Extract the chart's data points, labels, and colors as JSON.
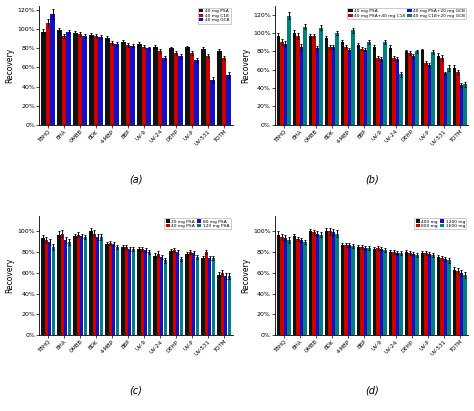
{
  "categories": [
    "TBHQ",
    "BHA",
    "OMBB",
    "BDK",
    "4-MBP",
    "BBP",
    "UV-9",
    "UV-24",
    "DEHP",
    "UV-P",
    "UV-531",
    "TOTM"
  ],
  "panel_a": {
    "title": "(a)",
    "legend": [
      "40 mg PSA",
      "40 mg C18",
      "40 mg GCB"
    ],
    "colors": [
      "#111111",
      "#cc0000",
      "#1111cc"
    ],
    "values": [
      [
        97,
        99,
        96,
        94,
        91,
        87,
        85,
        82,
        80,
        81,
        79,
        77
      ],
      [
        107,
        93,
        95,
        93,
        86,
        84,
        82,
        77,
        75,
        75,
        72,
        70
      ],
      [
        116,
        97,
        93,
        92,
        85,
        83,
        80,
        70,
        72,
        68,
        47,
        52
      ]
    ],
    "errors": [
      [
        3,
        2,
        2,
        2,
        2,
        2,
        2,
        2,
        2,
        2,
        2,
        2
      ],
      [
        4,
        2,
        2,
        2,
        2,
        2,
        2,
        2,
        2,
        2,
        2,
        2
      ],
      [
        5,
        2,
        2,
        2,
        2,
        2,
        2,
        2,
        2,
        2,
        3,
        3
      ]
    ],
    "ylim": [
      0,
      125
    ],
    "yticks": [
      0,
      20,
      40,
      60,
      80,
      100,
      120
    ]
  },
  "panel_b": {
    "title": "(b)",
    "legend": [
      "40 mg PSA",
      "40 mg PSA+40 mg C18",
      "40 mg PSA+20 mg GCB",
      "40 mg C18+20 mg GCB"
    ],
    "colors": [
      "#111111",
      "#cc0000",
      "#1111cc",
      "#008080"
    ],
    "values": [
      [
        97,
        100,
        97,
        95,
        90,
        87,
        85,
        84,
        80,
        81,
        75,
        62
      ],
      [
        90,
        97,
        97,
        85,
        85,
        83,
        73,
        73,
        78,
        67,
        73,
        57
      ],
      [
        88,
        85,
        84,
        85,
        82,
        82,
        72,
        72,
        75,
        65,
        56,
        43
      ],
      [
        119,
        107,
        106,
        100,
        103,
        90,
        90,
        55,
        80,
        79,
        62,
        44
      ]
    ],
    "errors": [
      [
        3,
        3,
        2,
        2,
        2,
        2,
        2,
        3,
        2,
        2,
        3,
        3
      ],
      [
        3,
        3,
        2,
        2,
        2,
        2,
        2,
        2,
        2,
        2,
        3,
        3
      ],
      [
        3,
        3,
        2,
        2,
        2,
        2,
        2,
        2,
        2,
        2,
        2,
        2
      ],
      [
        4,
        3,
        3,
        2,
        3,
        2,
        2,
        3,
        2,
        2,
        3,
        3
      ]
    ],
    "ylim": [
      0,
      130
    ],
    "yticks": [
      0,
      20,
      40,
      60,
      80,
      100,
      120
    ]
  },
  "panel_c": {
    "title": "(c)",
    "legend": [
      "20 mg PSA",
      "40 mg PSA",
      "80 mg PSA",
      "120 mg PSA"
    ],
    "colors": [
      "#111111",
      "#cc0000",
      "#1111cc",
      "#008080"
    ],
    "values": [
      [
        94,
        97,
        96,
        100,
        88,
        85,
        83,
        76,
        81,
        78,
        74,
        58
      ],
      [
        92,
        98,
        97,
        98,
        89,
        85,
        83,
        78,
        82,
        80,
        80,
        60
      ],
      [
        90,
        92,
        96,
        95,
        88,
        83,
        82,
        75,
        80,
        79,
        74,
        57
      ],
      [
        85,
        90,
        95,
        95,
        85,
        83,
        80,
        72,
        73,
        75,
        74,
        57
      ]
    ],
    "errors": [
      [
        3,
        3,
        2,
        3,
        2,
        2,
        2,
        3,
        2,
        2,
        2,
        3
      ],
      [
        3,
        3,
        2,
        3,
        2,
        2,
        2,
        3,
        2,
        2,
        2,
        3
      ],
      [
        3,
        3,
        2,
        3,
        2,
        2,
        2,
        2,
        2,
        2,
        2,
        3
      ],
      [
        3,
        3,
        2,
        3,
        2,
        2,
        2,
        2,
        2,
        2,
        2,
        3
      ]
    ],
    "ylim": [
      0,
      115
    ],
    "yticks": [
      0,
      20,
      40,
      60,
      80,
      100
    ]
  },
  "panel_d": {
    "title": "(d)",
    "legend": [
      "400 mg",
      "800 mg",
      "1200 mg",
      "1600 mg"
    ],
    "colors": [
      "#111111",
      "#cc0000",
      "#1111cc",
      "#008080"
    ],
    "values": [
      [
        97,
        96,
        100,
        100,
        87,
        85,
        83,
        80,
        80,
        79,
        75,
        63
      ],
      [
        95,
        93,
        99,
        100,
        87,
        85,
        84,
        80,
        79,
        79,
        74,
        62
      ],
      [
        94,
        92,
        98,
        99,
        87,
        84,
        83,
        79,
        78,
        78,
        73,
        60
      ],
      [
        92,
        90,
        97,
        98,
        86,
        84,
        82,
        79,
        77,
        77,
        72,
        58
      ]
    ],
    "errors": [
      [
        3,
        2,
        2,
        3,
        2,
        2,
        2,
        2,
        2,
        2,
        2,
        3
      ],
      [
        3,
        2,
        2,
        3,
        2,
        2,
        2,
        2,
        2,
        2,
        2,
        3
      ],
      [
        3,
        2,
        2,
        3,
        2,
        2,
        2,
        2,
        2,
        2,
        2,
        3
      ],
      [
        3,
        2,
        2,
        3,
        2,
        2,
        2,
        2,
        2,
        2,
        2,
        3
      ]
    ],
    "ylim": [
      0,
      115
    ],
    "yticks": [
      0,
      20,
      40,
      60,
      80,
      100
    ]
  },
  "ylabel": "Recovery",
  "bg_color": "#ffffff"
}
